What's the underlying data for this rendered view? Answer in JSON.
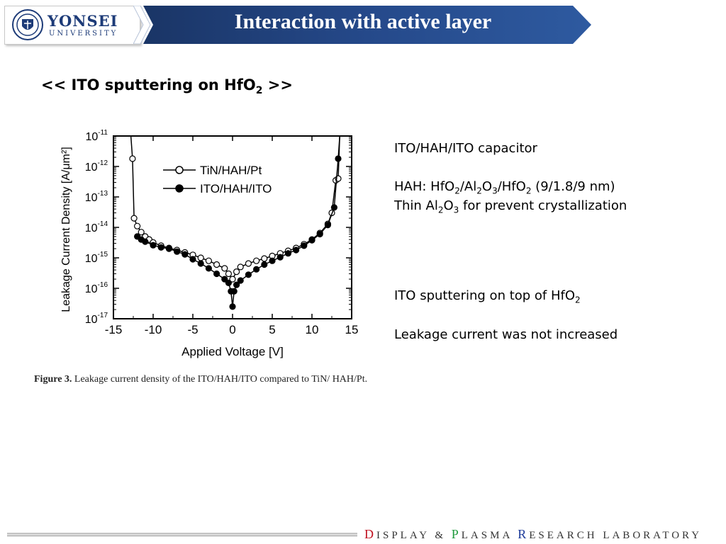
{
  "header": {
    "logo_name": "YONSEI",
    "logo_sub": "UNIVERSITY",
    "title": "Interaction with active layer",
    "colors": {
      "banner_dark": "#1a3566",
      "banner_light": "#2e5aa0",
      "logo_text": "#1d3b78"
    }
  },
  "subtitle": {
    "prefix": "<< ITO sputtering on HfO",
    "sub": "2",
    "suffix": " >>"
  },
  "right_panel": {
    "line1": "ITO/HAH/ITO capacitor",
    "line2_parts": [
      "HAH: HfO",
      "2",
      "/Al",
      "2",
      "O",
      "3",
      "/HfO",
      "2",
      " (9/1.8/9 nm)"
    ],
    "line3_parts": [
      "Thin Al",
      "2",
      "O",
      "3",
      " for prevent crystallization"
    ],
    "line4_parts": [
      "ITO sputtering on top of HfO",
      "2"
    ],
    "line5": "Leakage current was not increased"
  },
  "figure": {
    "caption_bold": "Figure 3.",
    "caption_text": " Leakage current density of the ITO/HAH/ITO compared to TiN/ HAH/Pt."
  },
  "chart_data": {
    "type": "scatter",
    "xlabel": "Applied Voltage [V]",
    "ylabel": "Leakage Current Density [A/μm²]",
    "xlim": [
      -15,
      15
    ],
    "ylim": [
      1e-17,
      1e-11
    ],
    "yscale": "log",
    "x_ticks": [
      "-15",
      "-10",
      "-5",
      "0",
      "5",
      "10",
      "15"
    ],
    "y_ticks": [
      {
        "base": "10",
        "exp": "-11"
      },
      {
        "base": "10",
        "exp": "-12"
      },
      {
        "base": "10",
        "exp": "-13"
      },
      {
        "base": "10",
        "exp": "-14"
      },
      {
        "base": "10",
        "exp": "-15"
      },
      {
        "base": "10",
        "exp": "-16"
      },
      {
        "base": "10",
        "exp": "-17"
      }
    ],
    "legend_position": "top-right",
    "series": [
      {
        "name": "TiN/HAH/Pt",
        "marker": "open-circle",
        "points": [
          [
            -12.8,
            1e-11
          ],
          [
            -12.6,
            1.8e-12
          ],
          [
            -12.4,
            2e-14
          ],
          [
            -12.0,
            1.1e-14
          ],
          [
            -11.5,
            7e-15
          ],
          [
            -11.0,
            5e-15
          ],
          [
            -10.5,
            4e-15
          ],
          [
            -10.0,
            3.2e-15
          ],
          [
            -9.0,
            2.5e-15
          ],
          [
            -8.0,
            2.1e-15
          ],
          [
            -7.0,
            1.8e-15
          ],
          [
            -6.0,
            1.5e-15
          ],
          [
            -5.0,
            1.25e-15
          ],
          [
            -4.0,
            1e-15
          ],
          [
            -3.0,
            8e-16
          ],
          [
            -2.0,
            6e-16
          ],
          [
            -1.0,
            4.5e-16
          ],
          [
            -0.5,
            3e-16
          ],
          [
            0.0,
            2e-16
          ],
          [
            0.5,
            3.5e-16
          ],
          [
            1.0,
            5e-16
          ],
          [
            2.0,
            6.5e-16
          ],
          [
            3.0,
            8e-16
          ],
          [
            4.0,
            9.5e-16
          ],
          [
            5.0,
            1.15e-15
          ],
          [
            6.0,
            1.4e-15
          ],
          [
            7.0,
            1.7e-15
          ],
          [
            8.0,
            2.1e-15
          ],
          [
            9.0,
            2.8e-15
          ],
          [
            10.0,
            4e-15
          ],
          [
            11.0,
            6.5e-15
          ],
          [
            12.0,
            1.3e-14
          ],
          [
            12.5,
            3e-14
          ],
          [
            13.0,
            3.5e-13
          ],
          [
            13.3,
            4e-13
          ],
          [
            13.5,
            1e-11
          ]
        ]
      },
      {
        "name": "ITO/HAH/ITO",
        "marker": "filled-circle",
        "points": [
          [
            -12.0,
            5e-15
          ],
          [
            -11.5,
            4e-15
          ],
          [
            -11.0,
            3.4e-15
          ],
          [
            -10.0,
            2.6e-15
          ],
          [
            -9.0,
            2.2e-15
          ],
          [
            -8.0,
            2e-15
          ],
          [
            -7.0,
            1.6e-15
          ],
          [
            -6.0,
            1.3e-15
          ],
          [
            -5.0,
            9e-16
          ],
          [
            -4.0,
            6.5e-16
          ],
          [
            -3.0,
            4.5e-16
          ],
          [
            -2.0,
            3e-16
          ],
          [
            -1.0,
            2e-16
          ],
          [
            -0.5,
            1.5e-16
          ],
          [
            -0.2,
            8e-17
          ],
          [
            0.0,
            2.5e-17
          ],
          [
            0.2,
            8e-17
          ],
          [
            0.5,
            1.3e-16
          ],
          [
            1.0,
            1.8e-16
          ],
          [
            2.0,
            2.8e-16
          ],
          [
            3.0,
            4.2e-16
          ],
          [
            4.0,
            6e-16
          ],
          [
            5.0,
            8e-16
          ],
          [
            6.0,
            1.05e-15
          ],
          [
            7.0,
            1.4e-15
          ],
          [
            8.0,
            1.8e-15
          ],
          [
            9.0,
            2.5e-15
          ],
          [
            10.0,
            3.8e-15
          ],
          [
            11.0,
            6e-15
          ],
          [
            12.0,
            1.2e-14
          ],
          [
            12.8,
            4.5e-14
          ],
          [
            13.3,
            1.8e-12
          ],
          [
            13.5,
            1e-11
          ]
        ]
      }
    ]
  },
  "footer": {
    "d": "D",
    "isplay": "ISPLAY",
    "amp": "&",
    "p": "P",
    "lasma": "LASMA",
    "r": "R",
    "esearch": "ESEARCH",
    "lab": "LABORATORY"
  }
}
